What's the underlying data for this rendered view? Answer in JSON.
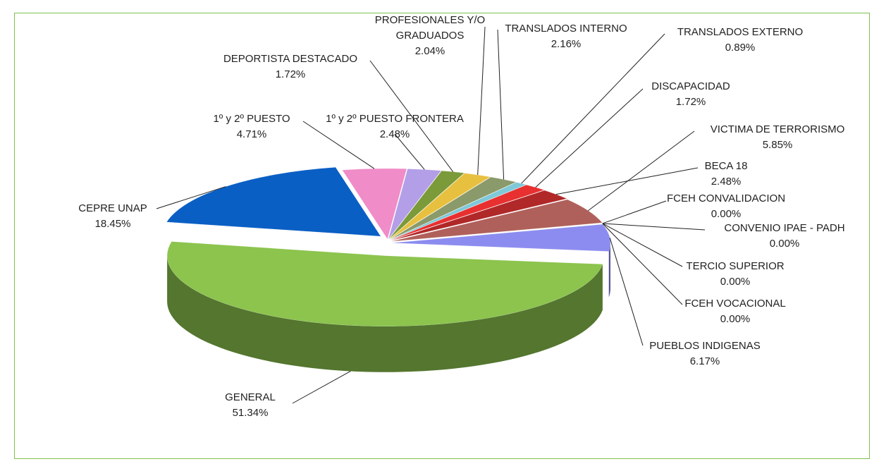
{
  "chart_data": {
    "type": "pie",
    "three_d": true,
    "categories": [
      "PUEBLOS INDIGENAS",
      "FCEH VOCACIONAL",
      "TERCIO SUPERIOR",
      "CONVENIO IPAE - PADH",
      "FCEH CONVALIDACION",
      "VICTIMA DE TERRORISMO",
      "BECA 18",
      "DISCAPACIDAD",
      "TRANSLADOS EXTERNO",
      "TRANSLADOS INTERNO",
      "PROFESIONALES Y/O GRADUADOS",
      "DEPORTISTA DESTACADO",
      "1º y 2º PUESTO FRONTERA",
      "1º y 2º PUESTO",
      "CEPRE UNAP",
      "GENERAL"
    ],
    "values": [
      6.17,
      0.0,
      0.0,
      0.0,
      0.0,
      5.85,
      2.48,
      1.72,
      0.89,
      2.16,
      2.04,
      1.72,
      2.48,
      4.71,
      18.45,
      51.34
    ],
    "value_labels": [
      "6.17%",
      "0.00%",
      "0.00%",
      "0.00%",
      "0.00%",
      "5.85%",
      "2.48%",
      "1.72%",
      "0.89%",
      "2.16%",
      "2.04%",
      "1.72%",
      "2.48%",
      "4.71%",
      "18.45%",
      "51.34%"
    ],
    "colors": [
      "#8c8cf0",
      "#6a6ad0",
      "#9a9ae0",
      "#7070c0",
      "#5a5ab0",
      "#b0605a",
      "#b02828",
      "#e83030",
      "#7ec8d8",
      "#8a9a6a",
      "#e8c040",
      "#7b9a3a",
      "#b39ee8",
      "#f08cc8",
      "#0a5fc4",
      "#8cc44e"
    ]
  }
}
